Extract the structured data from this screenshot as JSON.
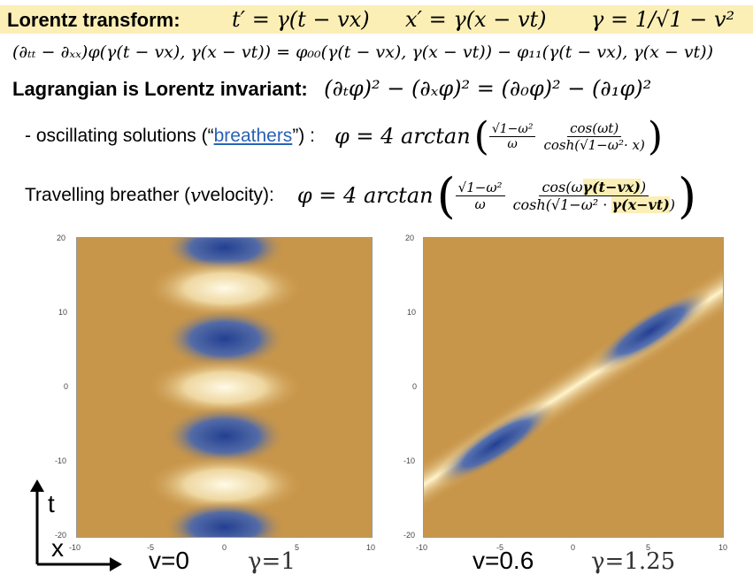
{
  "row1": {
    "title": "Lorentz transform:",
    "eq_t": "t′ = γ(t − vx)",
    "eq_x": "x′ = γ(x − vt)",
    "eq_gamma": "γ = 1/√1 − v²"
  },
  "row2": {
    "eq": "(∂ₜₜ − ∂ₓₓ)φ(γ(t − vx), γ(x − vt)) = φ₀₀(γ(t − vx), γ(x − vt)) − φ₁₁(γ(t − vx), γ(x − vt))"
  },
  "row3": {
    "title": "Lagrangian is Lorentz invariant:",
    "eq": "(∂ₜφ)² − (∂ₓφ)² = (∂₀φ)² − (∂₁φ)²"
  },
  "row4": {
    "prefix": "- oscillating solutions (“",
    "link": "breathers",
    "suffix": "”) :",
    "lhs": "φ = 4 arctan",
    "frac1_num": "√1−ω²",
    "frac1_den": "ω",
    "frac2_num": "cos(ωt)",
    "frac2_den": "cosh(√1−ω²· x)"
  },
  "row5": {
    "title": "Travelling breather (",
    "var": "v",
    "title_end": " velocity):",
    "lhs": "φ = 4 arctan",
    "frac1_num": "√1−ω²",
    "frac1_den": "ω",
    "frac2_num_a": "cos(ω",
    "frac2_num_hl": "γ(t−vx)",
    "frac2_num_b": ")",
    "frac2_den_a": "cosh(√1−ω² · ",
    "frac2_den_hl": "γ(x−vt)",
    "frac2_den_b": ")"
  },
  "plots": {
    "y_ticks": [
      "20",
      "10",
      "0",
      "-10",
      "-20"
    ],
    "x_ticks": [
      "-10",
      "-5",
      "0",
      "5",
      "10"
    ],
    "left_caption_v": "v=0",
    "left_caption_gamma": "γ=1",
    "right_caption_v": "v=0.6",
    "right_caption_gamma": "γ=1.25",
    "axis_t": "t",
    "axis_x": "x",
    "colors": {
      "background": "#c8964a",
      "light": "#fff6d2",
      "dark": "#2a4a9e"
    }
  }
}
